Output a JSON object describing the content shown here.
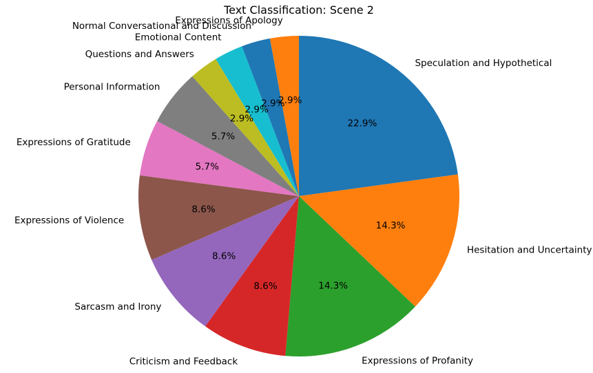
{
  "chart_data": {
    "type": "pie",
    "title": "Text Classification: Scene 2",
    "start_angle_deg": 90,
    "direction": "clockwise",
    "slices": [
      {
        "label": "Speculation and Hypothetical",
        "value": 22.9,
        "pct_label": "22.9%",
        "color": "#1f77b4"
      },
      {
        "label": "Hesitation and Uncertainty",
        "value": 14.3,
        "pct_label": "14.3%",
        "color": "#ff7f0e"
      },
      {
        "label": "Expressions of Profanity",
        "value": 14.3,
        "pct_label": "14.3%",
        "color": "#2ca02c"
      },
      {
        "label": "Criticism and Feedback",
        "value": 8.6,
        "pct_label": "8.6%",
        "color": "#d62728"
      },
      {
        "label": "Sarcasm and Irony",
        "value": 8.6,
        "pct_label": "8.6%",
        "color": "#9467bd"
      },
      {
        "label": "Expressions of Violence",
        "value": 8.6,
        "pct_label": "8.6%",
        "color": "#8c564b"
      },
      {
        "label": "Expressions of Gratitude",
        "value": 5.7,
        "pct_label": "5.7%",
        "color": "#e377c2"
      },
      {
        "label": "Personal Information",
        "value": 5.7,
        "pct_label": "5.7%",
        "color": "#7f7f7f"
      },
      {
        "label": "Questions and Answers",
        "value": 2.9,
        "pct_label": "2.9%",
        "color": "#bcbd22"
      },
      {
        "label": "Emotional Content",
        "value": 2.9,
        "pct_label": "2.9%",
        "color": "#17becf"
      },
      {
        "label": "Normal Conversational and Discussion",
        "value": 2.9,
        "pct_label": "2.9%",
        "color": "#1f77b4"
      },
      {
        "label": "Expressions of Apology",
        "value": 2.9,
        "pct_label": "2.9%",
        "color": "#ff7f0e"
      }
    ]
  }
}
